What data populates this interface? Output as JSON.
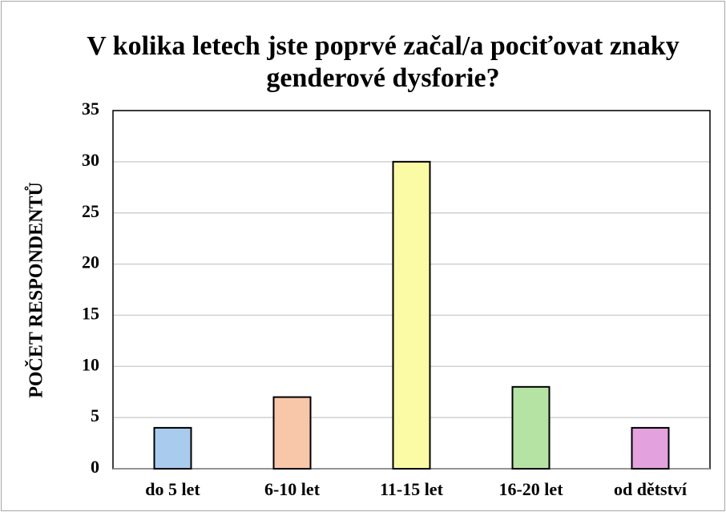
{
  "chart_data": {
    "type": "bar",
    "title": "V kolika letech jste poprvé začal/a pociťovat znaky genderové dysforie?",
    "ylabel": "POČET RESPONDENTŮ",
    "categories": [
      "do 5 let",
      "6-10 let",
      "11-15 let",
      "16-20 let",
      "od dětství"
    ],
    "values": [
      4,
      7,
      30,
      8,
      4
    ],
    "colors": [
      "#a9cbee",
      "#f8c7aa",
      "#fbfba6",
      "#b5e3a3",
      "#e3a1dd"
    ],
    "ylim": [
      0,
      35
    ],
    "yticks": [
      0,
      5,
      10,
      15,
      20,
      25,
      30,
      35
    ],
    "grid": true
  }
}
